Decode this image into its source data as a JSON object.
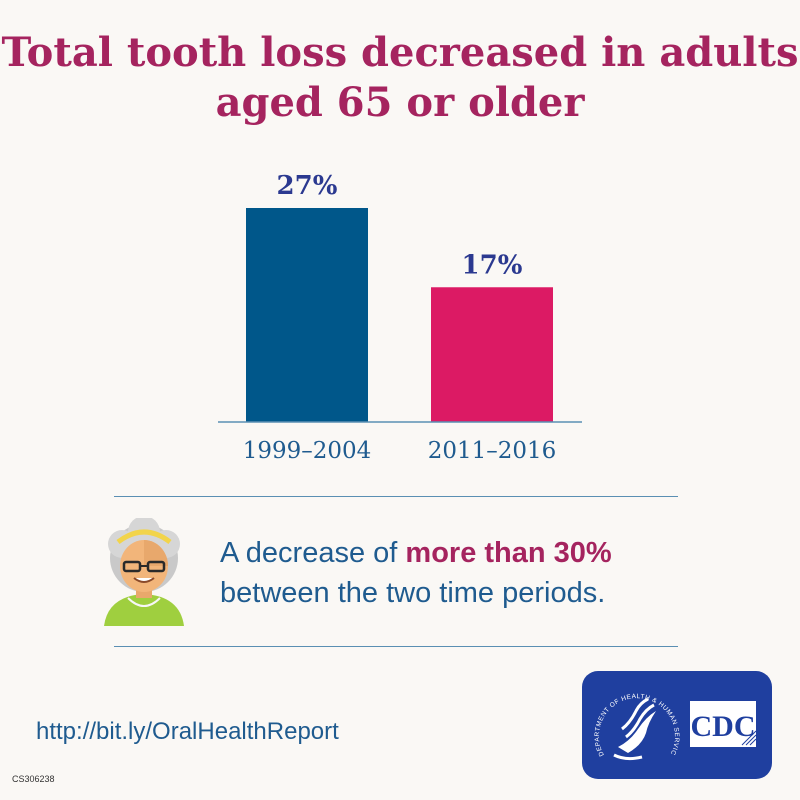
{
  "title": "Total tooth loss decreased in adults aged 65 or older",
  "chart_data": {
    "type": "bar",
    "title": "Total tooth loss decreased in adults aged 65 or older",
    "categories": [
      "1999–2004",
      "2011–2016"
    ],
    "values": [
      27,
      17
    ],
    "value_labels": [
      "27%",
      "17%"
    ],
    "bar_colors": [
      "#00578a",
      "#dc1a64"
    ],
    "ylim": [
      0,
      30
    ],
    "grid": false,
    "xlabel": "",
    "ylabel": ""
  },
  "note": {
    "prefix": "A decrease of ",
    "highlight": "more than 30%",
    "suffix": "between the two time periods."
  },
  "url": "http://bit.ly/OralHealthReport",
  "code": "CS306238",
  "logo": {
    "text": "CDC",
    "seal_text": "DEPARTMENT OF HEALTH & HUMAN SERVICES USA",
    "color": "#1f3f9f"
  },
  "colors": {
    "title": "#a5245f",
    "text": "#1f5b8f",
    "label": "#2b3990"
  }
}
